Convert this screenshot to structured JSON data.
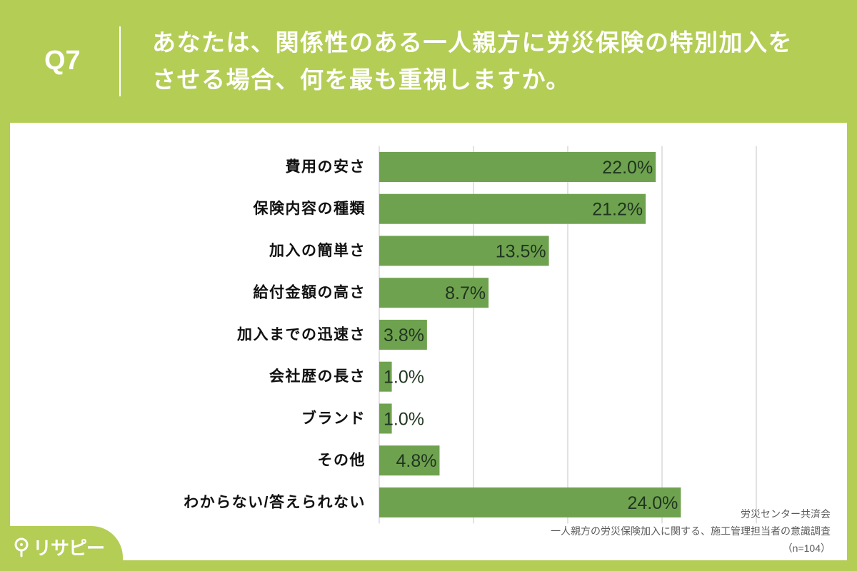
{
  "header": {
    "question_number": "Q7",
    "question_lines": [
      "あなたは、関係性のある一人親方に労災保険の特別加入を",
      "させる場合、何を最も重視しますか。"
    ]
  },
  "chart_data": {
    "type": "bar",
    "orientation": "horizontal",
    "categories": [
      "費用の安さ",
      "保険内容の種類",
      "加入の簡単さ",
      "給付金額の高さ",
      "加入までの迅速さ",
      "会社歴の長さ",
      "ブランド",
      "その他",
      "わからない/答えられない"
    ],
    "values": [
      22.0,
      21.2,
      13.5,
      8.7,
      3.8,
      1.0,
      1.0,
      4.8,
      24.0
    ],
    "data_labels": [
      "22.0%",
      "21.2%",
      "13.5%",
      "8.7%",
      "3.8%",
      "1.0%",
      "1.0%",
      "4.8%",
      "24.0%"
    ],
    "xlim": [
      0,
      30
    ],
    "x_ticks": [
      0,
      7.5,
      15,
      22.5,
      30
    ],
    "grid": true,
    "bar_color": "#6fa24f"
  },
  "source": {
    "organization": "労災センター共済会",
    "survey_title": "一人親方の労災保険加入に関する、施工管理担当者の意識調査",
    "sample_size": "（n=104）"
  },
  "logo": {
    "text": "リサピー",
    "icon": "lightbulb-icon"
  },
  "colors": {
    "frame": "#b4cd55",
    "panel": "#ffffff",
    "header_text": "#ffffff",
    "data_label": "#1f3520"
  }
}
